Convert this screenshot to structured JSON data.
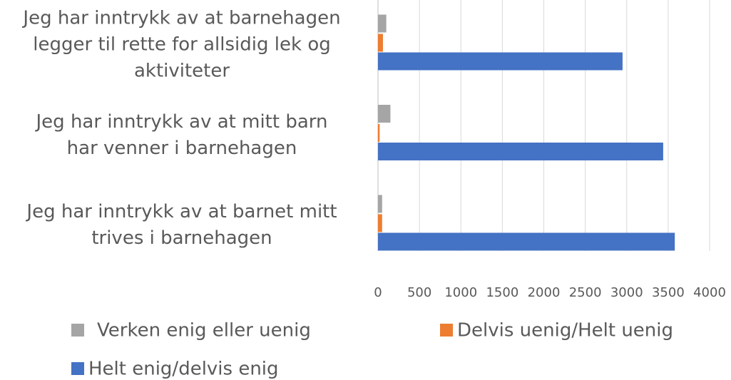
{
  "chart_data": {
    "type": "bar",
    "orientation": "horizontal",
    "categories": [
      "Jeg har inntrykk av at barnehagen\nlegger til rette for allsidig lek og\naktiviteter",
      "Jeg har inntrykk av at mitt barn\nhar venner i barnehagen",
      "Jeg har inntrykk av at barnet mitt\ntrives i barnehagen"
    ],
    "series": [
      {
        "name": "Verken enig eller uenig",
        "color": "#a5a5a5",
        "values": [
          100,
          150,
          50
        ]
      },
      {
        "name": "Delvis uenig/Helt uenig",
        "color": "#ed7d31",
        "values": [
          60,
          20,
          50
        ]
      },
      {
        "name": "Helt enig/delvis enig",
        "color": "#4472c4",
        "values": [
          2950,
          3440,
          3580
        ]
      }
    ],
    "xlim": [
      0,
      4000
    ],
    "xticks": [
      0,
      500,
      1000,
      1500,
      2000,
      2500,
      3000,
      3500,
      4000
    ],
    "grid": true,
    "legend": "bottom"
  }
}
